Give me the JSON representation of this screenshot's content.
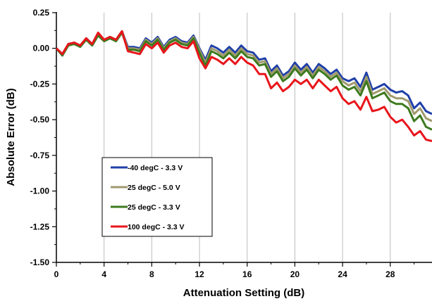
{
  "chart_data": {
    "type": "line",
    "title": "",
    "xlabel": "Attenuation Setting (dB)",
    "ylabel": "Absolute Error (dB)",
    "xlim": [
      0,
      31.5
    ],
    "ylim": [
      -1.5,
      0.25
    ],
    "x_ticks": [
      0,
      4,
      8,
      12,
      16,
      20,
      24,
      28
    ],
    "x_tick_labels": [
      "0",
      "4",
      "8",
      "12",
      "16",
      "20",
      "24",
      "28"
    ],
    "y_ticks": [
      0.25,
      0.0,
      -0.25,
      -0.5,
      -0.75,
      -1.0,
      -1.25,
      -1.5
    ],
    "y_tick_labels": [
      "0.25",
      "0.00",
      "-0.25",
      "-0.50",
      "-0.75",
      "-1.00",
      "-1.25",
      "-1.50"
    ],
    "grid": "vertical",
    "legend_position": "lower-left",
    "series": [
      {
        "name": "-40 degC - 3.3 V",
        "color": "#1f3fa8",
        "x": [
          0,
          0.5,
          1,
          1.5,
          2,
          2.5,
          3,
          3.5,
          4,
          4.5,
          5,
          5.5,
          6,
          6.5,
          7,
          7.5,
          8,
          8.5,
          9,
          9.5,
          10,
          10.5,
          11,
          11.5,
          12,
          12.5,
          13,
          13.5,
          14,
          14.5,
          15,
          15.5,
          16,
          16.5,
          17,
          17.5,
          18,
          18.5,
          19,
          19.5,
          20,
          20.5,
          21,
          21.5,
          22,
          22.5,
          23,
          23.5,
          24,
          24.5,
          25,
          25.5,
          26,
          26.5,
          27,
          27.5,
          28,
          28.5,
          29,
          29.5,
          30,
          30.5,
          31,
          31.5
        ],
        "values": [
          0.0,
          -0.05,
          0.03,
          0.04,
          0.02,
          0.07,
          0.03,
          0.1,
          0.06,
          0.08,
          0.06,
          0.12,
          0.01,
          0.01,
          0.0,
          0.07,
          0.04,
          0.08,
          0.01,
          0.06,
          0.08,
          0.05,
          0.04,
          0.09,
          0.0,
          -0.08,
          0.02,
          0.0,
          -0.03,
          0.01,
          -0.03,
          0.02,
          -0.02,
          -0.03,
          -0.08,
          -0.07,
          -0.16,
          -0.12,
          -0.19,
          -0.16,
          -0.1,
          -0.15,
          -0.11,
          -0.17,
          -0.11,
          -0.14,
          -0.18,
          -0.15,
          -0.21,
          -0.23,
          -0.21,
          -0.27,
          -0.17,
          -0.29,
          -0.27,
          -0.25,
          -0.29,
          -0.31,
          -0.3,
          -0.33,
          -0.42,
          -0.38,
          -0.44,
          -0.46
        ]
      },
      {
        "name": "25 degC - 5.0 V",
        "color": "#a09a6e",
        "x": [
          0,
          0.5,
          1,
          1.5,
          2,
          2.5,
          3,
          3.5,
          4,
          4.5,
          5,
          5.5,
          6,
          6.5,
          7,
          7.5,
          8,
          8.5,
          9,
          9.5,
          10,
          10.5,
          11,
          11.5,
          12,
          12.5,
          13,
          13.5,
          14,
          14.5,
          15,
          15.5,
          16,
          16.5,
          17,
          17.5,
          18,
          18.5,
          19,
          19.5,
          20,
          20.5,
          21,
          21.5,
          22,
          22.5,
          23,
          23.5,
          24,
          24.5,
          25,
          25.5,
          26,
          26.5,
          27,
          27.5,
          28,
          28.5,
          29,
          29.5,
          30,
          30.5,
          31,
          31.5
        ],
        "values": [
          0.0,
          -0.04,
          0.03,
          0.04,
          0.02,
          0.07,
          0.03,
          0.1,
          0.06,
          0.08,
          0.06,
          0.12,
          0.0,
          0.0,
          -0.01,
          0.06,
          0.03,
          0.07,
          0.0,
          0.05,
          0.07,
          0.04,
          0.03,
          0.08,
          -0.01,
          -0.1,
          0.0,
          -0.02,
          -0.05,
          -0.01,
          -0.05,
          0.0,
          -0.04,
          -0.05,
          -0.1,
          -0.09,
          -0.18,
          -0.14,
          -0.21,
          -0.18,
          -0.12,
          -0.17,
          -0.13,
          -0.19,
          -0.13,
          -0.16,
          -0.2,
          -0.17,
          -0.23,
          -0.26,
          -0.24,
          -0.3,
          -0.2,
          -0.32,
          -0.3,
          -0.28,
          -0.33,
          -0.35,
          -0.35,
          -0.37,
          -0.46,
          -0.42,
          -0.49,
          -0.51
        ]
      },
      {
        "name": "25 degC - 3.3 V",
        "color": "#3d7a1e",
        "x": [
          0,
          0.5,
          1,
          1.5,
          2,
          2.5,
          3,
          3.5,
          4,
          4.5,
          5,
          5.5,
          6,
          6.5,
          7,
          7.5,
          8,
          8.5,
          9,
          9.5,
          10,
          10.5,
          11,
          11.5,
          12,
          12.5,
          13,
          13.5,
          14,
          14.5,
          15,
          15.5,
          16,
          16.5,
          17,
          17.5,
          18,
          18.5,
          19,
          19.5,
          20,
          20.5,
          21,
          21.5,
          22,
          22.5,
          23,
          23.5,
          24,
          24.5,
          25,
          25.5,
          26,
          26.5,
          27,
          27.5,
          28,
          28.5,
          29,
          29.5,
          30,
          30.5,
          31,
          31.5
        ],
        "values": [
          0.0,
          -0.05,
          0.02,
          0.03,
          0.01,
          0.06,
          0.02,
          0.09,
          0.05,
          0.07,
          0.05,
          0.11,
          -0.01,
          -0.01,
          -0.02,
          0.05,
          0.02,
          0.06,
          -0.01,
          0.04,
          0.06,
          0.03,
          0.02,
          0.07,
          -0.03,
          -0.12,
          -0.02,
          -0.04,
          -0.07,
          -0.03,
          -0.07,
          -0.02,
          -0.06,
          -0.07,
          -0.12,
          -0.11,
          -0.2,
          -0.16,
          -0.23,
          -0.2,
          -0.14,
          -0.19,
          -0.15,
          -0.21,
          -0.15,
          -0.18,
          -0.22,
          -0.19,
          -0.26,
          -0.29,
          -0.27,
          -0.33,
          -0.23,
          -0.35,
          -0.33,
          -0.31,
          -0.37,
          -0.39,
          -0.39,
          -0.42,
          -0.51,
          -0.47,
          -0.55,
          -0.57
        ]
      },
      {
        "name": "100 degC - 3.3 V",
        "color": "#e8151b",
        "x": [
          0,
          0.5,
          1,
          1.5,
          2,
          2.5,
          3,
          3.5,
          4,
          4.5,
          5,
          5.5,
          6,
          6.5,
          7,
          7.5,
          8,
          8.5,
          9,
          9.5,
          10,
          10.5,
          11,
          11.5,
          12,
          12.5,
          13,
          13.5,
          14,
          14.5,
          15,
          15.5,
          16,
          16.5,
          17,
          17.5,
          18,
          18.5,
          19,
          19.5,
          20,
          20.5,
          21,
          21.5,
          22,
          22.5,
          23,
          23.5,
          24,
          24.5,
          25,
          25.5,
          26,
          26.5,
          27,
          27.5,
          28,
          28.5,
          29,
          29.5,
          30,
          30.5,
          31,
          31.5
        ],
        "values": [
          0.0,
          -0.04,
          0.03,
          0.04,
          0.02,
          0.07,
          0.03,
          0.11,
          0.06,
          0.08,
          0.06,
          0.12,
          -0.02,
          -0.03,
          -0.04,
          0.03,
          0.0,
          0.04,
          -0.03,
          0.02,
          0.04,
          0.01,
          0.0,
          0.05,
          -0.07,
          -0.14,
          -0.06,
          -0.08,
          -0.11,
          -0.07,
          -0.11,
          -0.06,
          -0.1,
          -0.12,
          -0.18,
          -0.18,
          -0.28,
          -0.24,
          -0.3,
          -0.27,
          -0.22,
          -0.25,
          -0.22,
          -0.28,
          -0.22,
          -0.26,
          -0.3,
          -0.27,
          -0.35,
          -0.39,
          -0.37,
          -0.43,
          -0.34,
          -0.44,
          -0.43,
          -0.41,
          -0.48,
          -0.52,
          -0.5,
          -0.55,
          -0.61,
          -0.58,
          -0.64,
          -0.65
        ]
      }
    ]
  }
}
